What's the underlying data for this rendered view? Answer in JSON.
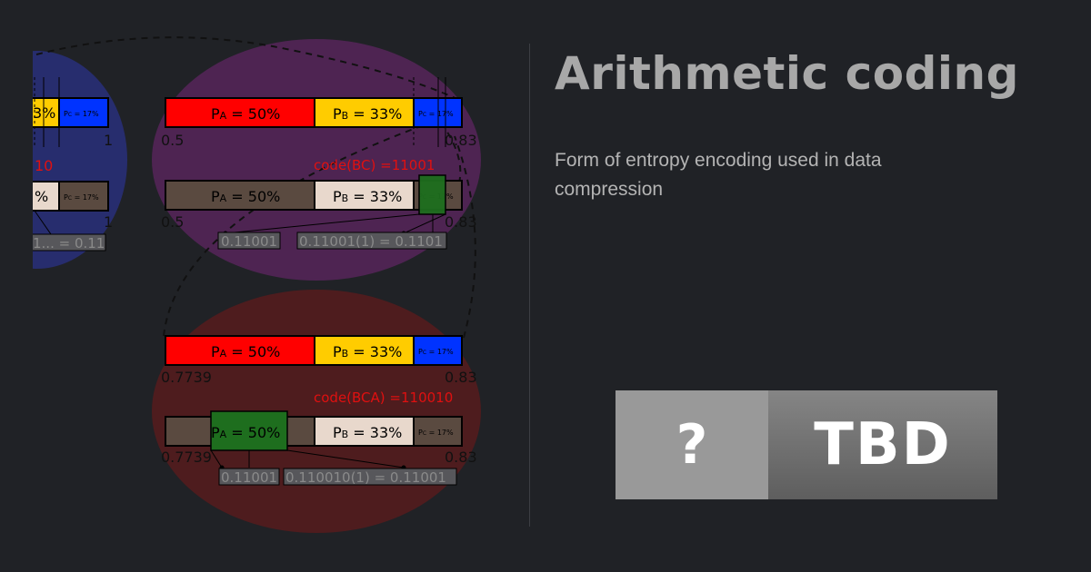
{
  "title": "Arithmetic coding",
  "subtitle": "Form of entropy encoding used in data compression",
  "badge": {
    "left_text": "?",
    "right_text": "TBD"
  },
  "diagram": {
    "colors": {
      "a": "#ff0000",
      "b": "#ffcc00",
      "c": "#0033ff",
      "bar_brown": "#5a4a40",
      "bar_light": "#e8d8cc",
      "highlight": "#1e6e1e",
      "circle_blue": "#272d6e",
      "circle_purple": "#4e2452",
      "circle_red": "#4e1c1e",
      "code_red": "#e01010"
    },
    "labels": {
      "pa": "P",
      "pa_sub": "A",
      "pa_val": " = 50%",
      "pb": "P",
      "pb_sub": "B",
      "pb_val": " = 33%",
      "pc": "P",
      "pc_sub": "C",
      "pc_val": " = 17%",
      "b_partial": "3%",
      "pct_partial": "%"
    },
    "left_panel": {
      "tick_top": "1",
      "tick_bottom": "1",
      "code_partial": "10",
      "bin_partial": "1... = 0.11"
    },
    "middle_top": {
      "lo": "0.5",
      "hi": "0.83",
      "lo2": "0.5",
      "hi2": "0.83",
      "code": "code(BC) =11001",
      "bin1": "0.11001",
      "bin2": "0.11001(1) = 0.1101"
    },
    "middle_bottom": {
      "lo": "0.7739",
      "hi": "0.83",
      "lo2": "0.7739",
      "hi2": "0.83",
      "code": "code(BCA) =110010",
      "bin1": "0.11001",
      "bin2": "0.110010(1) = 0.11001"
    }
  }
}
